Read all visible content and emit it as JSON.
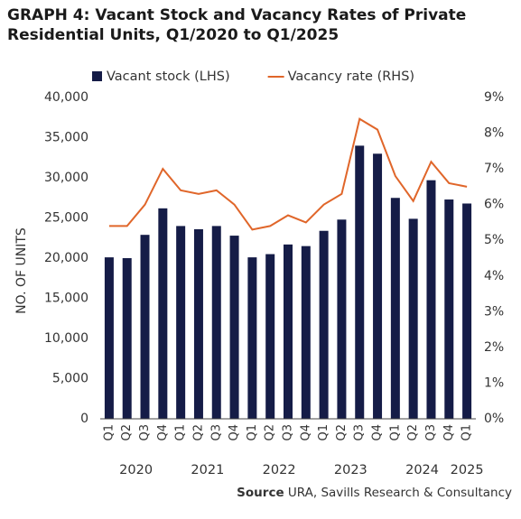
{
  "chart_data": {
    "type": "bar_line",
    "title": "GRAPH 4: Vacant Stock and Vacancy Rates of Private Residential Units, Q1/2020 to Q1/2025",
    "categories": [
      "Q1",
      "Q2",
      "Q3",
      "Q4",
      "Q1",
      "Q2",
      "Q3",
      "Q4",
      "Q1",
      "Q2",
      "Q3",
      "Q4",
      "Q1",
      "Q2",
      "Q3",
      "Q4",
      "Q1",
      "Q2",
      "Q3",
      "Q4",
      "Q1"
    ],
    "x_group_labels": [
      "2020",
      "2021",
      "2022",
      "2023",
      "2024",
      "2025"
    ],
    "series": [
      {
        "name": "Vacant stock (LHS)",
        "type": "bar",
        "color": "#151c47",
        "values": [
          20100,
          20000,
          22900,
          26200,
          24000,
          23600,
          24000,
          22800,
          20100,
          20500,
          21700,
          21500,
          23400,
          24800,
          34000,
          33000,
          27500,
          24900,
          29700,
          27300,
          26800
        ]
      },
      {
        "name": "Vacancy rate (RHS)",
        "type": "line",
        "axis": "y2",
        "color": "#e0662a",
        "values": [
          5.4,
          5.4,
          6.0,
          7.0,
          6.4,
          6.3,
          6.4,
          6.0,
          5.3,
          5.4,
          5.7,
          5.5,
          6.0,
          6.3,
          8.4,
          8.1,
          6.8,
          6.1,
          7.2,
          6.6,
          6.5
        ]
      }
    ],
    "y_label": "NO. OF UNITS",
    "ylim": [
      0,
      40000
    ],
    "yticks": [
      0,
      {
        "value": 5000,
        "label": "5,000"
      },
      {
        "value": 10000,
        "label": "10,000"
      },
      {
        "value": 15000,
        "label": "15,000"
      },
      {
        "value": 20000,
        "label": "20,000"
      },
      {
        "value": 25000,
        "label": "25,000"
      },
      {
        "value": 30000,
        "label": "30,000"
      },
      {
        "value": 35000,
        "label": "35,000"
      },
      {
        "value": 40000,
        "label": "40,000"
      }
    ],
    "y2lim": [
      0,
      9
    ],
    "y2ticks": [
      {
        "value": 0,
        "label": "0%"
      },
      {
        "value": 1,
        "label": "1%"
      },
      {
        "value": 2,
        "label": "2%"
      },
      {
        "value": 3,
        "label": "3%"
      },
      {
        "value": 4,
        "label": "4%"
      },
      {
        "value": 5,
        "label": "5%"
      },
      {
        "value": 6,
        "label": "6%"
      },
      {
        "value": 7,
        "label": "7%"
      },
      {
        "value": 8,
        "label": "8%"
      },
      {
        "value": 9,
        "label": "9%"
      }
    ],
    "legend": "top",
    "source_label": "Source",
    "source": "URA, Savills Research & Consultancy"
  }
}
